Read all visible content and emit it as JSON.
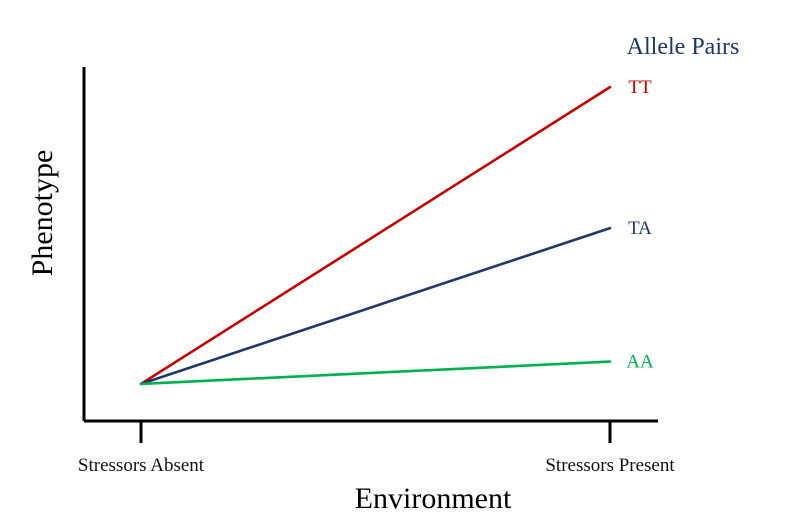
{
  "chart_data": {
    "type": "line",
    "title": "",
    "xlabel": "Environment",
    "ylabel": "Phenotype",
    "categories": [
      "Stressors Absent",
      "Stressors Present"
    ],
    "legend_title": "Allele Pairs",
    "legend_placement": "top-right",
    "y_ticks": "none",
    "ylim": [
      0,
      10
    ],
    "grid": false,
    "series": [
      {
        "name": "TT",
        "values": [
          1.0,
          9.0
        ],
        "color": "#c00000"
      },
      {
        "name": "TA",
        "values": [
          1.0,
          5.2
        ],
        "color": "#1f3864"
      },
      {
        "name": "AA",
        "values": [
          1.0,
          1.6
        ],
        "color": "#00b050"
      }
    ]
  }
}
